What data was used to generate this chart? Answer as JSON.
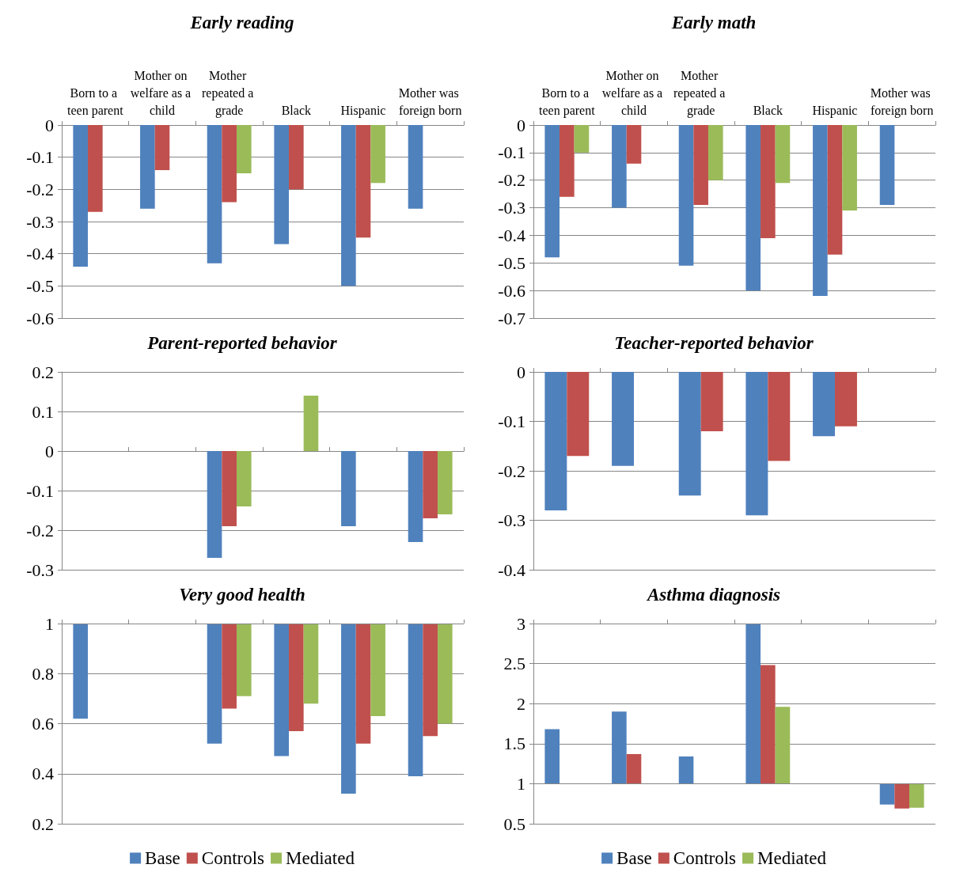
{
  "chart_data": [
    {
      "type": "bar",
      "title": "Early reading",
      "categories": [
        "Born to a teen parent",
        "Mother on welfare as a child",
        "Mother repeated a grade",
        "Black",
        "Hispanic",
        "Mother was foreign born"
      ],
      "series": [
        {
          "color": "#4f81bd",
          "values": [
            -0.44,
            -0.26,
            -0.43,
            -0.37,
            -0.5,
            -0.26
          ]
        },
        {
          "color": "#c0504d",
          "values": [
            -0.27,
            -0.14,
            -0.24,
            -0.2,
            -0.35,
            null
          ]
        },
        {
          "color": "#9bbb59",
          "values": [
            null,
            null,
            -0.15,
            null,
            -0.18,
            null
          ]
        }
      ],
      "ylim": [
        -0.6,
        0
      ],
      "yticks": [
        0,
        -0.1,
        -0.2,
        -0.3,
        -0.4,
        -0.5,
        -0.6
      ],
      "grid": "y",
      "legend": false
    },
    {
      "type": "bar",
      "title": "Early math",
      "categories": [
        "Born to a teen parent",
        "Mother on welfare as a child",
        "Mother repeated a grade",
        "Black",
        "Hispanic",
        "Mother was foreign born"
      ],
      "series": [
        {
          "color": "#4f81bd",
          "values": [
            -0.48,
            -0.3,
            -0.51,
            -0.6,
            -0.62,
            -0.29
          ]
        },
        {
          "color": "#c0504d",
          "values": [
            -0.26,
            -0.14,
            -0.29,
            -0.41,
            -0.47,
            null
          ]
        },
        {
          "color": "#9bbb59",
          "values": [
            -0.1,
            null,
            -0.2,
            -0.21,
            -0.31,
            null
          ]
        }
      ],
      "ylim": [
        -0.7,
        0
      ],
      "yticks": [
        0,
        -0.1,
        -0.2,
        -0.3,
        -0.4,
        -0.5,
        -0.6,
        -0.7
      ],
      "grid": "y",
      "legend": false
    },
    {
      "type": "bar",
      "title": "Parent-reported behavior",
      "categories": [
        "Born to a teen parent",
        "Mother on welfare as a child",
        "Mother repeated a grade",
        "Black",
        "Hispanic",
        "Mother was foreign born"
      ],
      "series": [
        {
          "color": "#4f81bd",
          "values": [
            null,
            null,
            -0.27,
            null,
            -0.19,
            -0.23
          ]
        },
        {
          "color": "#c0504d",
          "values": [
            null,
            null,
            -0.19,
            null,
            null,
            -0.17
          ]
        },
        {
          "color": "#9bbb59",
          "values": [
            null,
            null,
            -0.14,
            0.14,
            null,
            -0.16
          ]
        }
      ],
      "ylim": [
        -0.3,
        0.2
      ],
      "yticks": [
        0.2,
        0.1,
        0,
        -0.1,
        -0.2,
        -0.3
      ],
      "grid": "y",
      "legend": false,
      "tick_labels": "y"
    },
    {
      "type": "bar",
      "title": "Teacher-reported behavior",
      "categories": [
        "Born to a teen parent",
        "Mother on welfare as a child",
        "Mother repeated a grade",
        "Black",
        "Hispanic",
        "Mother was foreign born"
      ],
      "series": [
        {
          "color": "#4f81bd",
          "values": [
            -0.28,
            -0.19,
            -0.25,
            -0.29,
            -0.13,
            null
          ]
        },
        {
          "color": "#c0504d",
          "values": [
            -0.17,
            null,
            -0.12,
            -0.18,
            -0.11,
            null
          ]
        }
      ],
      "ylim": [
        -0.4,
        0
      ],
      "yticks": [
        0,
        -0.1,
        -0.2,
        -0.3,
        -0.4
      ],
      "grid": "y",
      "legend": false,
      "tick_labels": "y"
    },
    {
      "type": "bar",
      "title": "Very good health",
      "categories": [
        "Born to a teen parent",
        "Mother on welfare as a child",
        "Mother repeated a grade",
        "Black",
        "Hispanic",
        "Mother was foreign born"
      ],
      "series": [
        {
          "name": "Base",
          "color": "#4f81bd",
          "base": [
            1,
            null,
            1,
            1,
            1,
            1
          ],
          "values": [
            -0.38,
            null,
            -0.48,
            -0.53,
            -0.68,
            -0.61
          ]
        },
        {
          "name": "Controls",
          "color": "#c0504d",
          "base": [
            null,
            null,
            1,
            1,
            1,
            1
          ],
          "values": [
            null,
            null,
            -0.34,
            -0.43,
            -0.48,
            -0.45
          ]
        },
        {
          "name": "Mediated",
          "color": "#9bbb59",
          "base": [
            null,
            null,
            1,
            1,
            1,
            1
          ],
          "values": [
            null,
            null,
            -0.29,
            -0.32,
            -0.37,
            -0.4
          ]
        }
      ],
      "ylim": [
        0.2,
        1
      ],
      "yticks": [
        1,
        0.8,
        0.6,
        0.4,
        0.2
      ],
      "grid": "y",
      "legend": "bottom",
      "tick_labels": "y"
    },
    {
      "type": "bar",
      "title": "Asthma diagnosis",
      "categories": [
        "Born to a teen parent",
        "Mother on welfare as a child",
        "Mother repeated a grade",
        "Black",
        "Hispanic",
        "Mother was foreign born"
      ],
      "series": [
        {
          "name": "Base",
          "color": "#4f81bd",
          "base": [
            1,
            1,
            1,
            1,
            null,
            1
          ],
          "values": [
            0.68,
            0.9,
            0.34,
            1.99,
            null,
            -0.26
          ]
        },
        {
          "name": "Controls",
          "color": "#c0504d",
          "base": [
            null,
            1,
            null,
            1,
            null,
            1
          ],
          "values": [
            null,
            0.37,
            null,
            1.48,
            null,
            -0.31
          ]
        },
        {
          "name": "Mediated",
          "color": "#9bbb59",
          "base": [
            null,
            null,
            null,
            1,
            null,
            1
          ],
          "values": [
            null,
            null,
            null,
            0.96,
            null,
            -0.3
          ]
        }
      ],
      "ylim": [
        0.5,
        3
      ],
      "yticks": [
        3,
        2.5,
        2,
        1.5,
        1,
        0.5
      ],
      "grid": "y",
      "legend": "bottom",
      "tick_labels": "y"
    }
  ]
}
